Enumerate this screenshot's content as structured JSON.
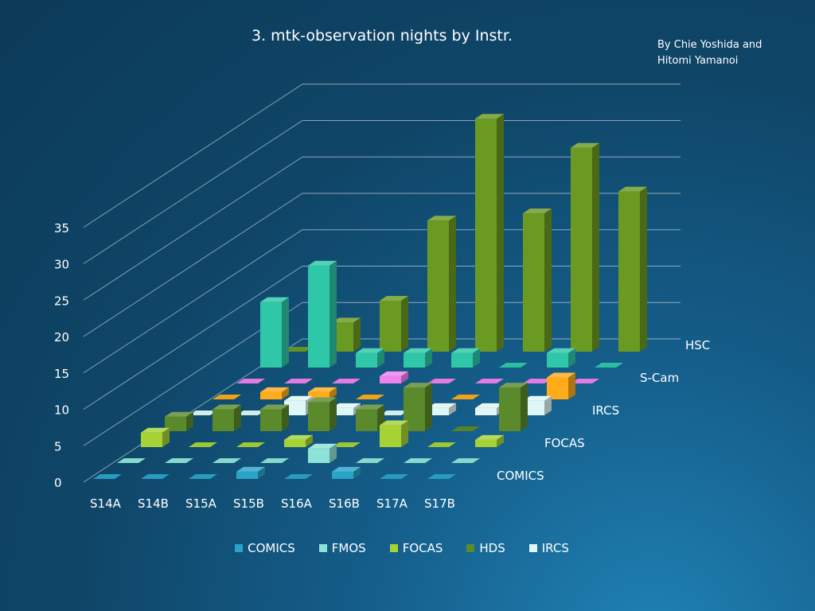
{
  "chart_data": {
    "type": "bar",
    "style": "3d-column",
    "title": "3. mtk-observation nights by Instr.",
    "credit": [
      "By Chie Yoshida and",
      "Hitomi Yamanoi"
    ],
    "categories": [
      "S14A",
      "S14B",
      "S15A",
      "S15B",
      "S16A",
      "S16B",
      "S17A",
      "S17B"
    ],
    "yticks": [
      0,
      5,
      10,
      15,
      20,
      25,
      30,
      35
    ],
    "ylim": [
      0,
      35
    ],
    "grid": true,
    "series": [
      {
        "name": "COMICS",
        "color": "#2aa3c8",
        "values": [
          0,
          0,
          0,
          1,
          0,
          1,
          0,
          0
        ]
      },
      {
        "name": "FMOS",
        "color": "#8ee3d8",
        "values": [
          0,
          0,
          0,
          0,
          2,
          0,
          0,
          0
        ]
      },
      {
        "name": "FOCAS",
        "color": "#a6d236",
        "values": [
          2,
          0,
          0,
          1,
          0,
          3,
          0,
          1
        ]
      },
      {
        "name": "HDS",
        "color": "#5a8a2c",
        "values": [
          2,
          3,
          3,
          4,
          3,
          6,
          0,
          6
        ]
      },
      {
        "name": "IRCS",
        "color": "#dff7f7",
        "values": [
          0,
          0,
          2,
          1,
          0,
          1,
          1,
          2
        ]
      },
      {
        "name": "S-Cam",
        "color": "#ffab1a",
        "values": [
          0,
          1,
          1,
          0,
          0,
          0,
          0,
          3
        ]
      },
      {
        "name": "",
        "color": "#ee82ee",
        "values": [
          0,
          0,
          0,
          1,
          0,
          0,
          0,
          0
        ]
      },
      {
        "name": "",
        "color": "#2ec8a8",
        "values": [
          9,
          14,
          2,
          2,
          2,
          0,
          2,
          0
        ]
      },
      {
        "name": "HSC",
        "color": "#6b9a22",
        "values": [
          0,
          4,
          7,
          18,
          32,
          19,
          28,
          22
        ]
      }
    ],
    "depth_labels": [
      "COMICS",
      "FOCAS",
      "IRCS",
      "S-Cam",
      "HSC"
    ],
    "legend": {
      "position": "bottom",
      "entries": [
        "COMICS",
        "FMOS",
        "FOCAS",
        "HDS",
        "IRCS"
      ]
    }
  }
}
